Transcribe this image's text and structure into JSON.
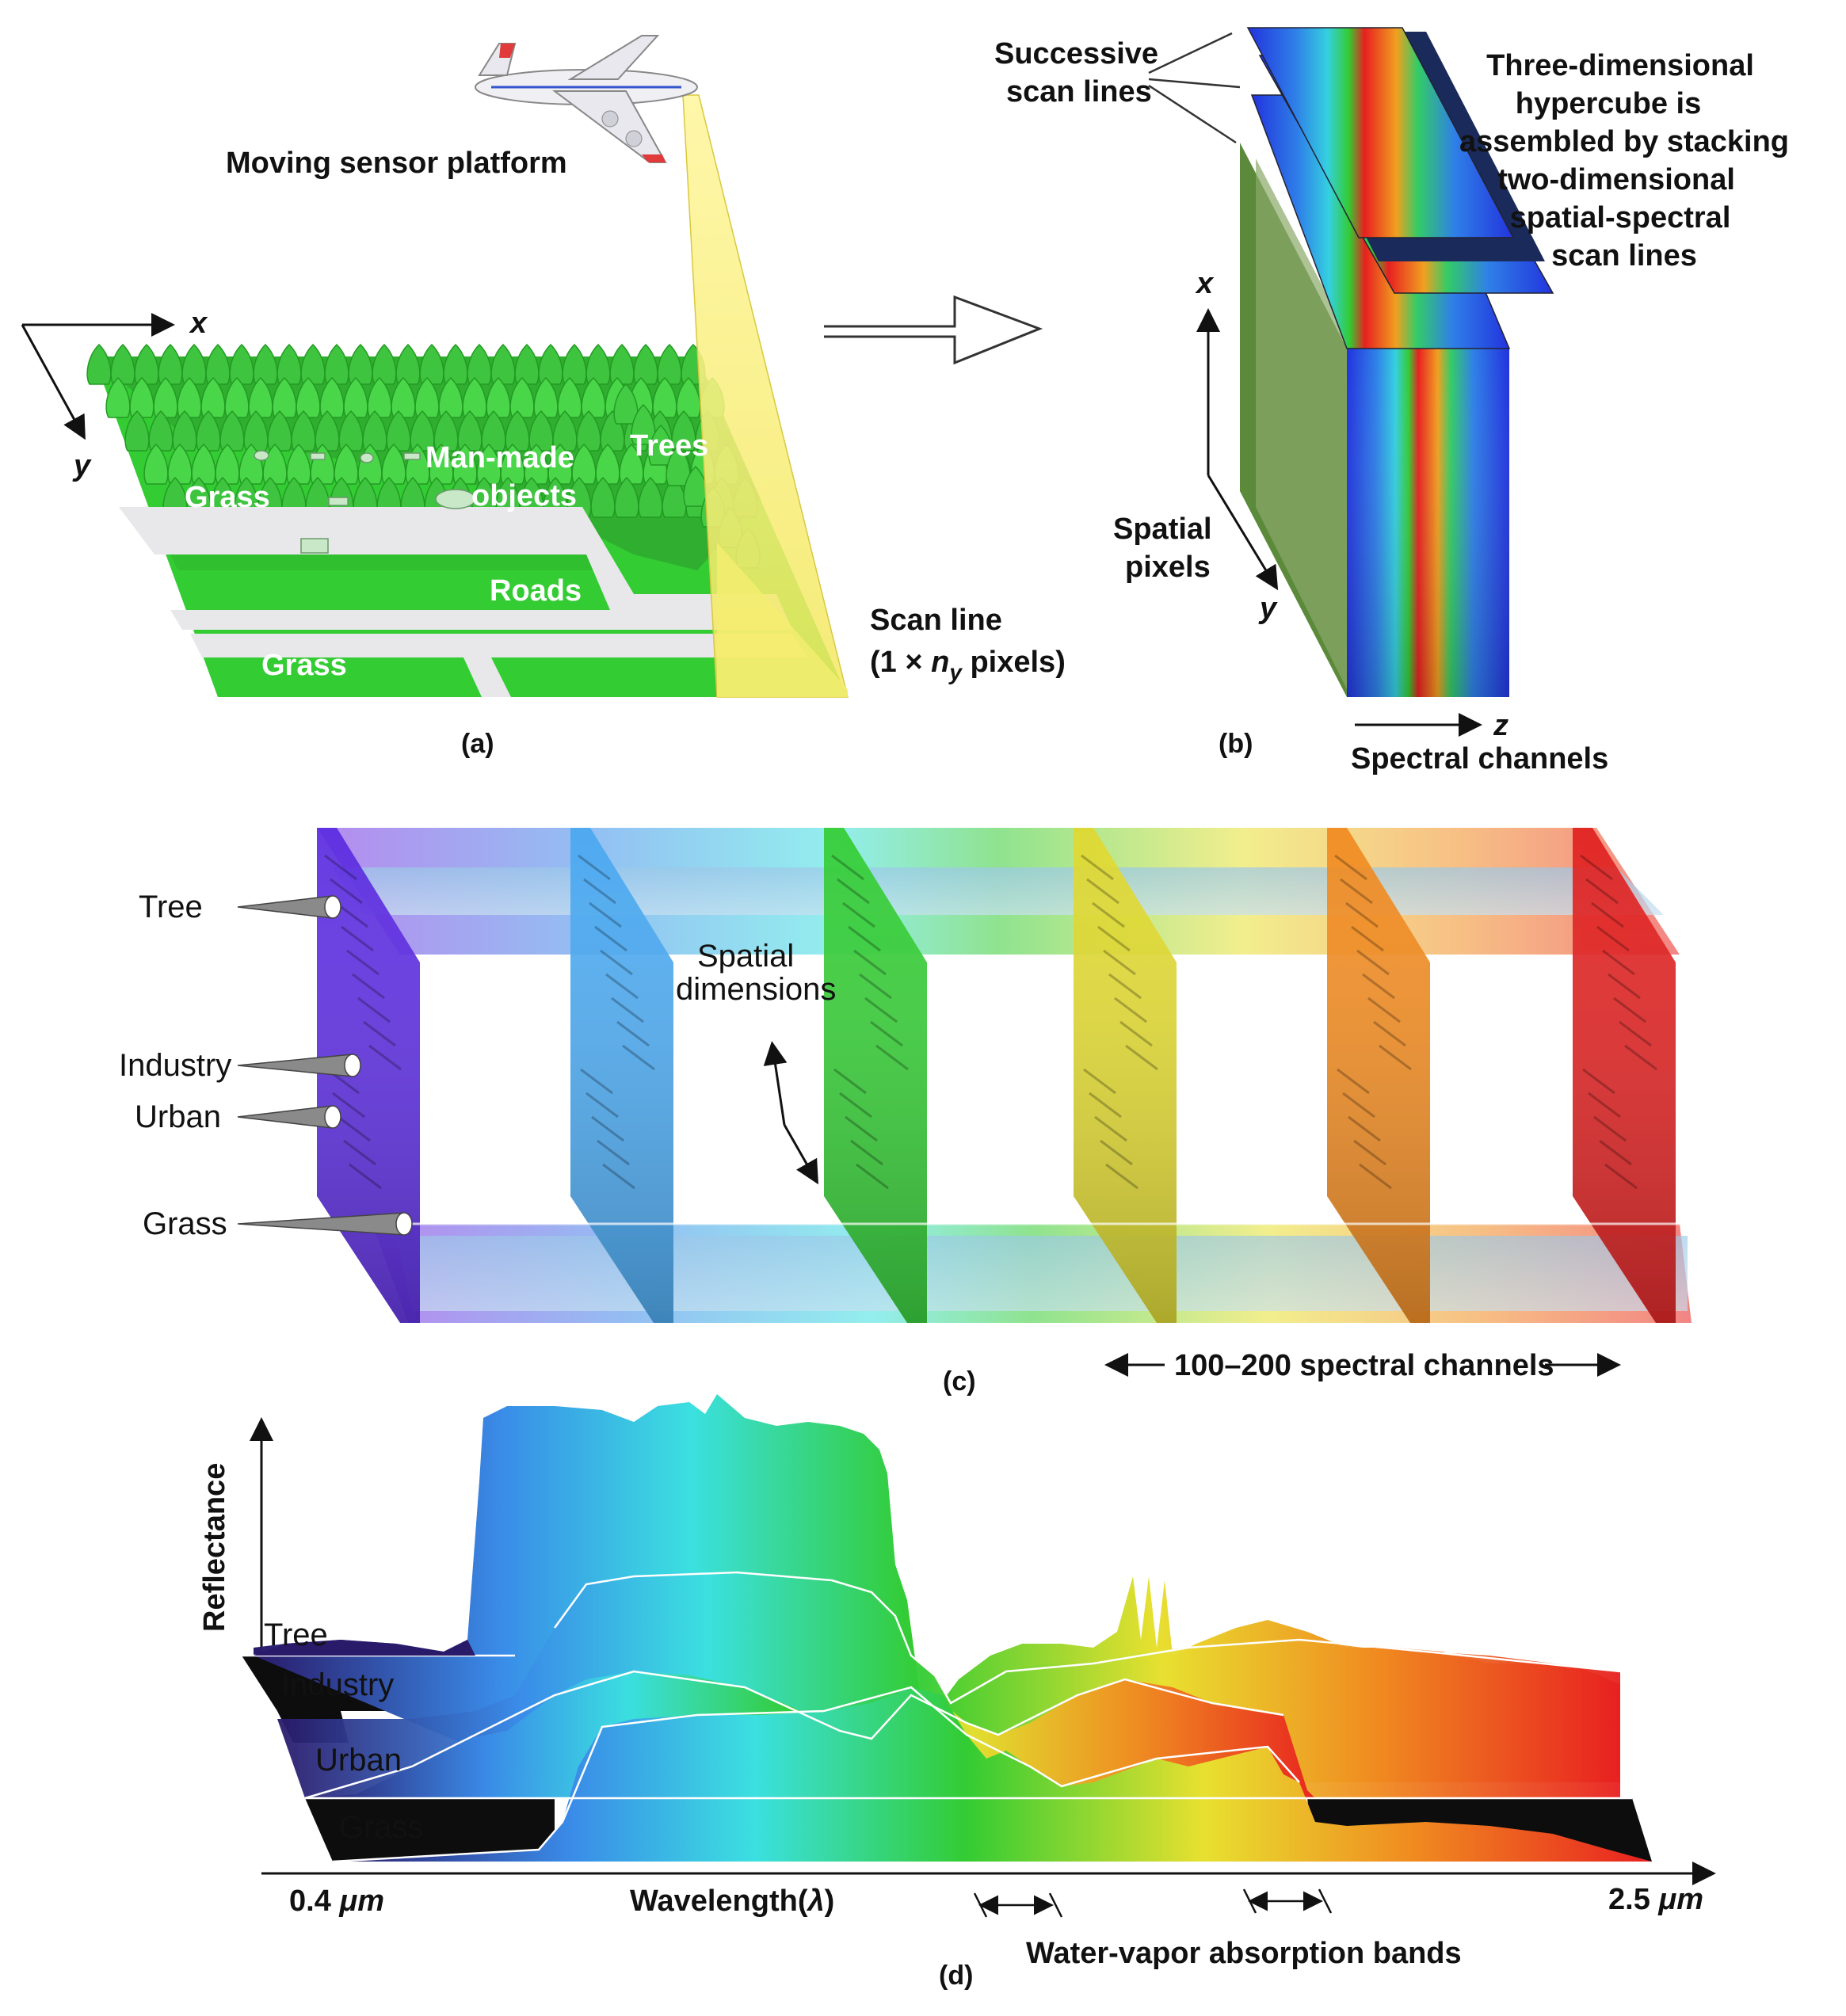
{
  "panel_a": {
    "platform_label": "Moving sensor platform",
    "axis_x": "x",
    "axis_y": "y",
    "regions": {
      "trees": "Trees",
      "man_made_line1": "Man-made",
      "man_made_line2": "objects",
      "grass_top": "Grass",
      "roads": "Roads",
      "grass_bottom": "Grass"
    },
    "scan_line_line1": "Scan line",
    "scan_line_line2_pre": "(1 × ",
    "scan_line_n": "n",
    "scan_line_sub": "y",
    "scan_line_line2_post": " pixels)",
    "caption": "(a)"
  },
  "panel_b": {
    "successive_line1": "Successive",
    "successive_line2": "scan lines",
    "hypercube_lines": [
      "Three-dimensional",
      "hypercube is",
      "assembled by stacking",
      "two-dimensional",
      "spatial-spectral",
      "scan lines"
    ],
    "axis_x": "x",
    "axis_y": "y",
    "axis_z": "z",
    "spatial_line1": "Spatial",
    "spatial_line2": "pixels",
    "spectral_label": "Spectral channels",
    "caption": "(b)"
  },
  "panel_c": {
    "probes": [
      "Tree",
      "Industry",
      "Urban",
      "Grass"
    ],
    "spatial_line1": "Spatial",
    "spatial_line2": "dimensions",
    "channels_label": "100–200 spectral channels",
    "caption": "(c)"
  },
  "panel_d": {
    "ylabel": "Reflectance",
    "series": [
      "Tree",
      "Industry",
      "Urban",
      "Grass"
    ],
    "x_start": "0.4 μm",
    "x_end": "2.5 μm",
    "x_start_num": "0.4",
    "x_end_num": "2.5",
    "x_unit": "μm",
    "xlabel_pre": "Wavelength(",
    "xlabel_sym": "λ",
    "xlabel_post": ")",
    "water_label": "Water-vapor absorption bands",
    "caption": "(d)"
  },
  "colors": {
    "grass": "#33cc33",
    "road": "#e8e8ea",
    "beam": "#f5ef7a",
    "spectrum": [
      "#7a2be0",
      "#3a8be8",
      "#3be0e0",
      "#33cc33",
      "#e8e030",
      "#f08a20",
      "#e82020"
    ]
  }
}
